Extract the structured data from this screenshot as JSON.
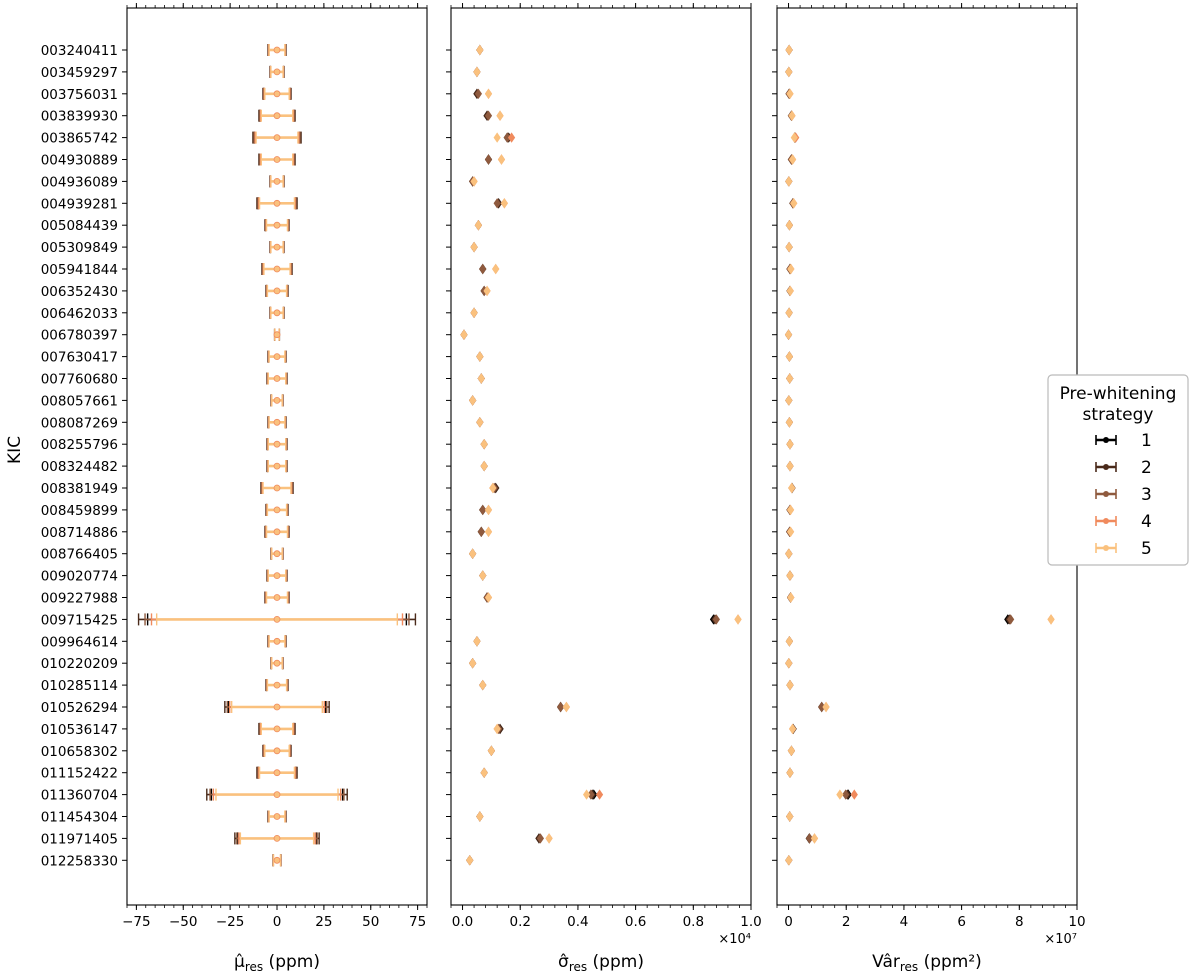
{
  "chart_data": {
    "type": "errorbar",
    "ylabel": "KIC",
    "stars": [
      "003240411",
      "003459297",
      "003756031",
      "003839930",
      "003865742",
      "004930889",
      "004936089",
      "004939281",
      "005084439",
      "005309849",
      "005941844",
      "006352430",
      "006462033",
      "006780397",
      "007630417",
      "007760680",
      "008057661",
      "008087269",
      "008255796",
      "008324482",
      "008381949",
      "008459899",
      "008714886",
      "008766405",
      "009020774",
      "009227988",
      "009715425",
      "009964614",
      "010220209",
      "010285114",
      "010526294",
      "010536147",
      "010658302",
      "011152422",
      "011360704",
      "011454304",
      "011971405",
      "012258330"
    ],
    "legend": {
      "title_lines": [
        "Pre-whitening",
        "strategy"
      ],
      "entries": [
        {
          "label": "1",
          "color": "#000000"
        },
        {
          "label": "2",
          "color": "#4a2a1a"
        },
        {
          "label": "3",
          "color": "#8f5a3e"
        },
        {
          "label": "4",
          "color": "#f08a5d"
        },
        {
          "label": "5",
          "color": "#fac17e"
        }
      ]
    },
    "panels": [
      {
        "name": "mu",
        "xlabel": "μ̂res (ppm)",
        "xlabel_main": "μ̂",
        "xlabel_sub": "res",
        "xlabel_unit": " (ppm)",
        "xlim": [
          -80,
          80
        ],
        "xticks": [
          -75,
          -50,
          -25,
          0,
          25,
          50,
          75
        ],
        "xtick_labels": [
          "−75",
          "−50",
          "−25",
          "0",
          "25",
          "50",
          "75"
        ],
        "exponent_label": "",
        "mean": [
          0,
          0,
          0,
          0,
          0,
          0,
          0,
          0,
          0,
          0,
          0,
          0,
          0,
          0,
          0,
          0,
          0,
          0,
          0,
          0,
          0,
          0,
          0,
          0,
          0,
          0,
          0,
          0,
          0,
          0,
          0,
          0,
          0,
          0,
          0,
          0,
          0,
          0
        ],
        "err": [
          4.5,
          3.5,
          7,
          9,
          12,
          9,
          3.5,
          10,
          6,
          3.5,
          7.5,
          5.5,
          3.5,
          1.2,
          4.5,
          5,
          3,
          4.5,
          5,
          5,
          8,
          5.5,
          6,
          3,
          5,
          6,
          69,
          4.5,
          3,
          5.5,
          26,
          9,
          7,
          10,
          35,
          4.5,
          21,
          2
        ],
        "strategy_scale": [
          1.0,
          1.07,
          1.02,
          0.97,
          0.93
        ]
      },
      {
        "name": "sigma",
        "xlabel": "σ̂res (ppm)",
        "xlabel_main": "σ̂",
        "xlabel_sub": "res",
        "xlabel_unit": " (ppm)",
        "xlim": [
          -0.04,
          1.0
        ],
        "xticks": [
          0.0,
          0.2,
          0.4,
          0.6,
          0.8,
          1.0
        ],
        "xtick_labels": [
          "0.0",
          "0.2",
          "0.4",
          "0.6",
          "0.8",
          "1.0"
        ],
        "exponent_label": "×10⁴",
        "values": [
          [
            0.06,
            0.06,
            0.06,
            0.06,
            0.06
          ],
          [
            0.05,
            0.05,
            0.05,
            0.05,
            0.05
          ],
          [
            0.05,
            0.05,
            0.055,
            0.09,
            0.09
          ],
          [
            0.085,
            0.085,
            0.09,
            0.13,
            0.13
          ],
          [
            0.155,
            0.16,
            0.155,
            0.17,
            0.12
          ],
          [
            0.09,
            0.09,
            0.09,
            0.135,
            0.135
          ],
          [
            0.035,
            0.035,
            0.035,
            0.04,
            0.04
          ],
          [
            0.125,
            0.125,
            0.12,
            0.145,
            0.145
          ],
          [
            0.055,
            0.055,
            0.055,
            0.055,
            0.055
          ],
          [
            0.04,
            0.04,
            0.04,
            0.04,
            0.04
          ],
          [
            0.07,
            0.07,
            0.07,
            0.115,
            0.115
          ],
          [
            0.075,
            0.075,
            0.075,
            0.085,
            0.085
          ],
          [
            0.04,
            0.04,
            0.04,
            0.04,
            0.04
          ],
          [
            0.005,
            0.005,
            0.005,
            0.005,
            0.005
          ],
          [
            0.06,
            0.06,
            0.06,
            0.06,
            0.06
          ],
          [
            0.065,
            0.065,
            0.065,
            0.065,
            0.065
          ],
          [
            0.035,
            0.035,
            0.035,
            0.035,
            0.035
          ],
          [
            0.06,
            0.06,
            0.06,
            0.06,
            0.06
          ],
          [
            0.075,
            0.075,
            0.075,
            0.075,
            0.075
          ],
          [
            0.075,
            0.075,
            0.075,
            0.075,
            0.075
          ],
          [
            0.115,
            0.115,
            0.11,
            0.105,
            0.105
          ],
          [
            0.07,
            0.07,
            0.07,
            0.09,
            0.09
          ],
          [
            0.065,
            0.065,
            0.065,
            0.09,
            0.09
          ],
          [
            0.035,
            0.035,
            0.035,
            0.035,
            0.035
          ],
          [
            0.07,
            0.07,
            0.07,
            0.07,
            0.07
          ],
          [
            0.085,
            0.085,
            0.085,
            0.09,
            0.09
          ],
          [
            0.87,
            0.875,
            0.88,
            0.955,
            0.955
          ],
          [
            0.05,
            0.05,
            0.05,
            0.05,
            0.05
          ],
          [
            0.035,
            0.035,
            0.035,
            0.035,
            0.035
          ],
          [
            0.07,
            0.07,
            0.07,
            0.07,
            0.07
          ],
          [
            0.34,
            0.34,
            0.34,
            0.36,
            0.36
          ],
          [
            0.13,
            0.13,
            0.125,
            0.12,
            0.12
          ],
          [
            0.1,
            0.1,
            0.1,
            0.1,
            0.1
          ],
          [
            0.075,
            0.075,
            0.075,
            0.075,
            0.075
          ],
          [
            0.455,
            0.45,
            0.445,
            0.475,
            0.43
          ],
          [
            0.06,
            0.06,
            0.06,
            0.06,
            0.06
          ],
          [
            0.265,
            0.265,
            0.27,
            0.3,
            0.3
          ],
          [
            0.025,
            0.025,
            0.025,
            0.025,
            0.025
          ]
        ]
      },
      {
        "name": "var",
        "xlabel": "Vâres (ppm²)",
        "xlabel_main": "Vâr",
        "xlabel_sub": "res",
        "xlabel_unit": " (ppm²)",
        "xlim": [
          -0.4,
          10
        ],
        "xticks": [
          0,
          2,
          4,
          6,
          8,
          10
        ],
        "xtick_labels": [
          "0",
          "2",
          "4",
          "6",
          "8",
          "10"
        ],
        "exponent_label": "×10⁷",
        "values": [
          [
            0.02,
            0.02,
            0.02,
            0.02,
            0.02
          ],
          [
            0.01,
            0.01,
            0.01,
            0.01,
            0.01
          ],
          [
            0.02,
            0.02,
            0.02,
            0.05,
            0.05
          ],
          [
            0.1,
            0.1,
            0.1,
            0.12,
            0.12
          ],
          [
            0.22,
            0.22,
            0.22,
            0.25,
            0.2
          ],
          [
            0.1,
            0.1,
            0.1,
            0.14,
            0.14
          ],
          [
            0.01,
            0.01,
            0.01,
            0.01,
            0.01
          ],
          [
            0.15,
            0.15,
            0.15,
            0.18,
            0.18
          ],
          [
            0.03,
            0.03,
            0.03,
            0.03,
            0.03
          ],
          [
            0.02,
            0.02,
            0.02,
            0.02,
            0.02
          ],
          [
            0.05,
            0.05,
            0.05,
            0.08,
            0.08
          ],
          [
            0.05,
            0.05,
            0.05,
            0.06,
            0.06
          ],
          [
            0.02,
            0.02,
            0.02,
            0.02,
            0.02
          ],
          [
            0.0,
            0.0,
            0.0,
            0.0,
            0.0
          ],
          [
            0.03,
            0.03,
            0.03,
            0.03,
            0.03
          ],
          [
            0.04,
            0.04,
            0.04,
            0.04,
            0.04
          ],
          [
            0.01,
            0.01,
            0.01,
            0.01,
            0.01
          ],
          [
            0.03,
            0.03,
            0.03,
            0.03,
            0.03
          ],
          [
            0.05,
            0.05,
            0.05,
            0.05,
            0.05
          ],
          [
            0.05,
            0.05,
            0.05,
            0.05,
            0.05
          ],
          [
            0.12,
            0.12,
            0.12,
            0.11,
            0.11
          ],
          [
            0.05,
            0.05,
            0.05,
            0.07,
            0.07
          ],
          [
            0.04,
            0.04,
            0.04,
            0.07,
            0.07
          ],
          [
            0.01,
            0.01,
            0.01,
            0.01,
            0.01
          ],
          [
            0.05,
            0.05,
            0.05,
            0.05,
            0.05
          ],
          [
            0.07,
            0.07,
            0.07,
            0.08,
            0.08
          ],
          [
            7.6,
            7.65,
            7.7,
            9.1,
            9.1
          ],
          [
            0.03,
            0.03,
            0.03,
            0.03,
            0.03
          ],
          [
            0.01,
            0.01,
            0.01,
            0.01,
            0.01
          ],
          [
            0.05,
            0.05,
            0.05,
            0.05,
            0.05
          ],
          [
            1.15,
            1.15,
            1.15,
            1.3,
            1.3
          ],
          [
            0.16,
            0.16,
            0.15,
            0.14,
            0.14
          ],
          [
            0.1,
            0.1,
            0.1,
            0.1,
            0.1
          ],
          [
            0.05,
            0.05,
            0.05,
            0.05,
            0.05
          ],
          [
            2.07,
            2.04,
            1.98,
            2.28,
            1.78
          ],
          [
            0.04,
            0.04,
            0.04,
            0.04,
            0.04
          ],
          [
            0.72,
            0.72,
            0.73,
            0.9,
            0.9
          ],
          [
            0.01,
            0.01,
            0.01,
            0.01,
            0.01
          ]
        ]
      }
    ]
  }
}
